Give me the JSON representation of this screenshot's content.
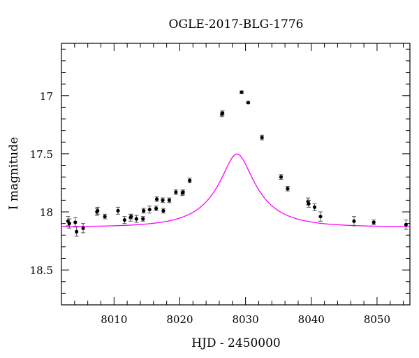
{
  "chart_data": {
    "type": "scatter",
    "title": "OGLE-2017-BLG-1776",
    "xlabel": "HJD - 2450000",
    "ylabel": "I magnitude",
    "xlim": [
      8002,
      8055
    ],
    "ylim": [
      18.8,
      16.55
    ],
    "y_inverted": true,
    "x_ticks": [
      8010,
      8020,
      8030,
      8040,
      8050
    ],
    "x_tick_labels": [
      "8010",
      "8020",
      "8030",
      "8040",
      "8050"
    ],
    "y_ticks": [
      17,
      17.5,
      18,
      18.5
    ],
    "y_tick_labels": [
      "17",
      "17.5",
      "18",
      "18.5"
    ],
    "x_minor_step": 2,
    "y_minor_step": 0.1,
    "grid": false,
    "colors": {
      "model": "#ff00ff",
      "points": "#000000",
      "errorbars": "#555555"
    },
    "model_curve": {
      "description_type": "point-lens",
      "t0": 8028.7,
      "u0": 0.3,
      "tE": 7.5,
      "fs": 0.32,
      "baseline": 18.13
    },
    "series": [
      {
        "points": [
          {
            "x": 8003.0,
            "y": 18.08,
            "err": 0.04
          },
          {
            "x": 8003.2,
            "y": 18.1,
            "err": 0.04
          },
          {
            "x": 8004.1,
            "y": 18.09,
            "err": 0.04
          },
          {
            "x": 8004.3,
            "y": 18.17,
            "err": 0.04
          },
          {
            "x": 8005.3,
            "y": 18.14,
            "err": 0.04
          },
          {
            "x": 8007.4,
            "y": 18.0,
            "err": 0.03
          },
          {
            "x": 8007.5,
            "y": 17.99,
            "err": 0.03
          },
          {
            "x": 8008.6,
            "y": 18.04,
            "err": 0.02
          },
          {
            "x": 8010.6,
            "y": 17.99,
            "err": 0.03
          },
          {
            "x": 8011.6,
            "y": 18.07,
            "err": 0.03
          },
          {
            "x": 8012.5,
            "y": 18.05,
            "err": 0.03
          },
          {
            "x": 8012.6,
            "y": 18.04,
            "err": 0.02
          },
          {
            "x": 8013.4,
            "y": 18.06,
            "err": 0.03
          },
          {
            "x": 8014.4,
            "y": 18.06,
            "err": 0.02
          },
          {
            "x": 8014.5,
            "y": 17.99,
            "err": 0.02
          },
          {
            "x": 8015.4,
            "y": 17.98,
            "err": 0.03
          },
          {
            "x": 8016.4,
            "y": 17.97,
            "err": 0.02
          },
          {
            "x": 8016.5,
            "y": 17.89,
            "err": 0.02
          },
          {
            "x": 8017.4,
            "y": 17.9,
            "err": 0.02
          },
          {
            "x": 8017.5,
            "y": 17.99,
            "err": 0.02
          },
          {
            "x": 8018.4,
            "y": 17.9,
            "err": 0.02
          },
          {
            "x": 8019.4,
            "y": 17.83,
            "err": 0.02
          },
          {
            "x": 8020.4,
            "y": 17.84,
            "err": 0.02
          },
          {
            "x": 8020.5,
            "y": 17.83,
            "err": 0.02
          },
          {
            "x": 8021.5,
            "y": 17.73,
            "err": 0.02
          },
          {
            "x": 8026.4,
            "y": 17.16,
            "err": 0.02
          },
          {
            "x": 8026.5,
            "y": 17.15,
            "err": 0.02
          },
          {
            "x": 8029.4,
            "y": 16.97,
            "err": 0.01
          },
          {
            "x": 8030.4,
            "y": 17.06,
            "err": 0.01
          },
          {
            "x": 8032.5,
            "y": 17.36,
            "err": 0.02
          },
          {
            "x": 8035.4,
            "y": 17.7,
            "err": 0.02
          },
          {
            "x": 8036.4,
            "y": 17.8,
            "err": 0.02
          },
          {
            "x": 8039.5,
            "y": 17.91,
            "err": 0.03
          },
          {
            "x": 8039.6,
            "y": 17.93,
            "err": 0.03
          },
          {
            "x": 8040.5,
            "y": 17.96,
            "err": 0.03
          },
          {
            "x": 8041.4,
            "y": 18.04,
            "err": 0.04
          },
          {
            "x": 8046.5,
            "y": 18.08,
            "err": 0.04
          },
          {
            "x": 8049.5,
            "y": 18.09,
            "err": 0.02
          },
          {
            "x": 8054.4,
            "y": 18.11,
            "err": 0.04
          }
        ]
      }
    ]
  }
}
